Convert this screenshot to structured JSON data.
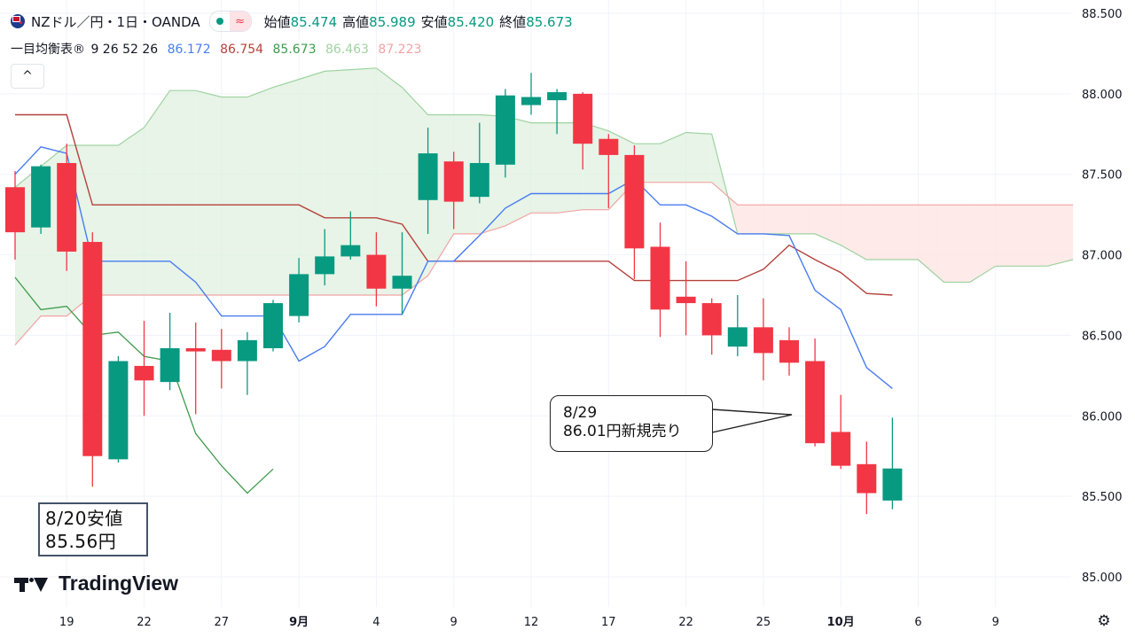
{
  "header": {
    "symbol": "NZドル／円・1日・OANDA",
    "open_label": "始値",
    "open": "85.474",
    "high_label": "高値",
    "high": "85.989",
    "low_label": "安値",
    "low": "85.420",
    "close_label": "終値",
    "close": "85.673",
    "market_icon": "market-status-icon",
    "wave_symbol": "≈"
  },
  "indicator": {
    "name": "一目均衡表®",
    "params": "9 26 52 26",
    "values": [
      {
        "value": "86.172",
        "color": "#4a7cf0"
      },
      {
        "value": "86.754",
        "color": "#b5413b"
      },
      {
        "value": "85.673",
        "color": "#3f9b4c"
      },
      {
        "value": "86.463",
        "color": "#9fd3a0"
      },
      {
        "value": "87.223",
        "color": "#f2a3a3"
      }
    ],
    "collapse_glyph": "^"
  },
  "callouts": {
    "entry_line1": "8/29",
    "entry_line2": "86.01円新規売り",
    "low_line1": "8/20安値",
    "low_line2": "85.56円"
  },
  "branding": {
    "logo_text": "TradingView"
  },
  "settings_glyph": "⚙",
  "colors": {
    "up": "#089981",
    "down": "#f23645",
    "tenkan": "#4a7cf0",
    "kijun": "#b5413b",
    "chikou": "#3f9b4c",
    "span_a": "#9fd3a0",
    "span_b": "#f2a3a3"
  },
  "chart_data": {
    "type": "candlestick",
    "ylim": [
      84.9,
      88.55
    ],
    "yticks": [
      88.5,
      88.0,
      87.5,
      87.0,
      86.5,
      86.0,
      85.5,
      85.0
    ],
    "ytick_labels": [
      "88.500",
      "88.000",
      "87.500",
      "87.000",
      "86.500",
      "86.000",
      "85.500",
      "85.000"
    ],
    "xtick_labels": [
      {
        "i": 2,
        "label": "19"
      },
      {
        "i": 5,
        "label": "22"
      },
      {
        "i": 8,
        "label": "27"
      },
      {
        "i": 11,
        "label": "9月",
        "bold": true
      },
      {
        "i": 14,
        "label": "4"
      },
      {
        "i": 17,
        "label": "9"
      },
      {
        "i": 20,
        "label": "12"
      },
      {
        "i": 23,
        "label": "17"
      },
      {
        "i": 26,
        "label": "22"
      },
      {
        "i": 29,
        "label": "25"
      },
      {
        "i": 32,
        "label": "10月",
        "bold": true
      },
      {
        "i": 35,
        "label": "6"
      },
      {
        "i": 38,
        "label": "9"
      }
    ],
    "candles": [
      {
        "i": 0,
        "o": 87.42,
        "h": 87.52,
        "l": 86.97,
        "c": 87.14
      },
      {
        "i": 1,
        "o": 87.17,
        "h": 87.56,
        "l": 87.13,
        "c": 87.55
      },
      {
        "i": 2,
        "o": 87.57,
        "h": 87.69,
        "l": 86.9,
        "c": 87.02
      },
      {
        "i": 3,
        "o": 87.08,
        "h": 87.14,
        "l": 85.56,
        "c": 85.75
      },
      {
        "i": 4,
        "o": 85.73,
        "h": 86.37,
        "l": 85.71,
        "c": 86.34
      },
      {
        "i": 5,
        "o": 86.31,
        "h": 86.59,
        "l": 86.0,
        "c": 86.22
      },
      {
        "i": 6,
        "o": 86.21,
        "h": 86.64,
        "l": 86.16,
        "c": 86.42
      },
      {
        "i": 7,
        "o": 86.42,
        "h": 86.58,
        "l": 86.01,
        "c": 86.4
      },
      {
        "i": 8,
        "o": 86.41,
        "h": 86.54,
        "l": 86.17,
        "c": 86.34
      },
      {
        "i": 9,
        "o": 86.34,
        "h": 86.52,
        "l": 86.13,
        "c": 86.47
      },
      {
        "i": 10,
        "o": 86.42,
        "h": 86.72,
        "l": 86.4,
        "c": 86.7
      },
      {
        "i": 11,
        "o": 86.62,
        "h": 86.98,
        "l": 86.58,
        "c": 86.88
      },
      {
        "i": 12,
        "o": 86.88,
        "h": 87.16,
        "l": 86.81,
        "c": 86.99
      },
      {
        "i": 13,
        "o": 86.99,
        "h": 87.27,
        "l": 86.97,
        "c": 87.06
      },
      {
        "i": 14,
        "o": 87.0,
        "h": 87.14,
        "l": 86.68,
        "c": 86.79
      },
      {
        "i": 15,
        "o": 86.79,
        "h": 87.14,
        "l": 86.63,
        "c": 86.87
      },
      {
        "i": 16,
        "o": 87.34,
        "h": 87.79,
        "l": 87.13,
        "c": 87.63
      },
      {
        "i": 17,
        "o": 87.58,
        "h": 87.64,
        "l": 87.16,
        "c": 87.33
      },
      {
        "i": 18,
        "o": 87.36,
        "h": 87.82,
        "l": 87.32,
        "c": 87.57
      },
      {
        "i": 19,
        "o": 87.56,
        "h": 88.03,
        "l": 87.48,
        "c": 87.99
      },
      {
        "i": 20,
        "o": 87.93,
        "h": 88.13,
        "l": 87.87,
        "c": 87.98
      },
      {
        "i": 21,
        "o": 87.96,
        "h": 88.03,
        "l": 87.75,
        "c": 88.01
      },
      {
        "i": 22,
        "o": 88.0,
        "h": 88.01,
        "l": 87.53,
        "c": 87.69
      },
      {
        "i": 23,
        "o": 87.72,
        "h": 87.75,
        "l": 87.29,
        "c": 87.62
      },
      {
        "i": 24,
        "o": 87.62,
        "h": 87.68,
        "l": 86.85,
        "c": 87.04
      },
      {
        "i": 25,
        "o": 87.05,
        "h": 87.2,
        "l": 86.49,
        "c": 86.66
      },
      {
        "i": 26,
        "o": 86.74,
        "h": 86.96,
        "l": 86.5,
        "c": 86.7
      },
      {
        "i": 27,
        "o": 86.7,
        "h": 86.73,
        "l": 86.38,
        "c": 86.5
      },
      {
        "i": 28,
        "o": 86.43,
        "h": 86.75,
        "l": 86.37,
        "c": 86.55
      },
      {
        "i": 29,
        "o": 86.55,
        "h": 86.73,
        "l": 86.22,
        "c": 86.39
      },
      {
        "i": 30,
        "o": 86.47,
        "h": 86.55,
        "l": 86.25,
        "c": 86.33
      },
      {
        "i": 31,
        "o": 86.34,
        "h": 86.48,
        "l": 85.81,
        "c": 85.83
      },
      {
        "i": 32,
        "o": 85.9,
        "h": 86.13,
        "l": 85.67,
        "c": 85.69
      },
      {
        "i": 33,
        "o": 85.7,
        "h": 85.84,
        "l": 85.39,
        "c": 85.52
      },
      {
        "i": 34,
        "o": 85.474,
        "h": 85.989,
        "l": 85.42,
        "c": 85.673
      }
    ],
    "tenkan": [
      [
        0,
        87.5
      ],
      [
        1,
        87.67
      ],
      [
        2,
        87.63
      ],
      [
        3,
        86.96
      ],
      [
        4,
        86.96
      ],
      [
        5,
        86.96
      ],
      [
        6,
        86.96
      ],
      [
        7,
        86.83
      ],
      [
        8,
        86.62
      ],
      [
        9,
        86.62
      ],
      [
        10,
        86.62
      ],
      [
        11,
        86.34
      ],
      [
        12,
        86.43
      ],
      [
        13,
        86.63
      ],
      [
        14,
        86.63
      ],
      [
        15,
        86.63
      ],
      [
        16,
        86.96
      ],
      [
        17,
        86.96
      ],
      [
        18,
        87.12
      ],
      [
        19,
        87.29
      ],
      [
        20,
        87.38
      ],
      [
        21,
        87.38
      ],
      [
        22,
        87.38
      ],
      [
        23,
        87.38
      ],
      [
        24,
        87.47
      ],
      [
        25,
        87.31
      ],
      [
        26,
        87.31
      ],
      [
        27,
        87.24
      ],
      [
        28,
        87.13
      ],
      [
        29,
        87.13
      ],
      [
        30,
        87.12
      ],
      [
        31,
        86.78
      ],
      [
        32,
        86.66
      ],
      [
        33,
        86.3
      ],
      [
        34,
        86.17
      ]
    ],
    "kijun": [
      [
        0,
        87.87
      ],
      [
        1,
        87.87
      ],
      [
        2,
        87.87
      ],
      [
        3,
        87.31
      ],
      [
        4,
        87.31
      ],
      [
        5,
        87.31
      ],
      [
        6,
        87.31
      ],
      [
        7,
        87.31
      ],
      [
        8,
        87.31
      ],
      [
        9,
        87.31
      ],
      [
        10,
        87.31
      ],
      [
        11,
        87.31
      ],
      [
        12,
        87.23
      ],
      [
        13,
        87.23
      ],
      [
        14,
        87.23
      ],
      [
        15,
        87.19
      ],
      [
        16,
        86.96
      ],
      [
        17,
        86.96
      ],
      [
        18,
        86.96
      ],
      [
        19,
        86.96
      ],
      [
        20,
        86.96
      ],
      [
        21,
        86.96
      ],
      [
        22,
        86.96
      ],
      [
        23,
        86.96
      ],
      [
        24,
        86.84
      ],
      [
        25,
        86.84
      ],
      [
        26,
        86.84
      ],
      [
        27,
        86.84
      ],
      [
        28,
        86.84
      ],
      [
        29,
        86.91
      ],
      [
        30,
        87.06
      ],
      [
        31,
        86.97
      ],
      [
        32,
        86.89
      ],
      [
        33,
        86.76
      ],
      [
        34,
        86.75
      ]
    ],
    "chikou": [
      [
        0,
        86.86
      ],
      [
        1,
        86.66
      ],
      [
        2,
        86.68
      ],
      [
        3,
        86.5
      ],
      [
        4,
        86.52
      ],
      [
        5,
        86.37
      ],
      [
        6,
        86.34
      ],
      [
        7,
        85.89
      ],
      [
        8,
        85.69
      ],
      [
        9,
        85.52
      ],
      [
        10,
        85.67
      ]
    ],
    "senkou_a": [
      [
        0,
        87.42
      ],
      [
        1,
        87.55
      ],
      [
        2,
        87.68
      ],
      [
        3,
        87.68
      ],
      [
        4,
        87.68
      ],
      [
        5,
        87.79
      ],
      [
        6,
        88.02
      ],
      [
        7,
        88.02
      ],
      [
        8,
        87.98
      ],
      [
        9,
        87.98
      ],
      [
        10,
        88.04
      ],
      [
        11,
        88.09
      ],
      [
        12,
        88.14
      ],
      [
        13,
        88.15
      ],
      [
        14,
        88.16
      ],
      [
        15,
        88.04
      ],
      [
        16,
        87.87
      ],
      [
        17,
        87.87
      ],
      [
        18,
        87.87
      ],
      [
        19,
        87.86
      ],
      [
        20,
        87.82
      ],
      [
        21,
        87.82
      ],
      [
        22,
        87.82
      ],
      [
        23,
        87.77
      ],
      [
        24,
        87.69
      ],
      [
        25,
        87.69
      ],
      [
        26,
        87.76
      ],
      [
        27,
        87.75
      ],
      [
        28,
        87.13
      ],
      [
        29,
        87.13
      ],
      [
        30,
        87.13
      ],
      [
        31,
        87.13
      ],
      [
        32,
        87.06
      ],
      [
        33,
        86.97
      ],
      [
        34,
        86.97
      ],
      [
        35,
        86.97
      ],
      [
        36,
        86.83
      ],
      [
        37,
        86.83
      ],
      [
        38,
        86.93
      ],
      [
        39,
        86.93
      ],
      [
        40,
        86.93
      ],
      [
        41,
        86.97
      ]
    ],
    "senkou_b": [
      [
        0,
        86.44
      ],
      [
        1,
        86.62
      ],
      [
        2,
        86.62
      ],
      [
        3,
        86.75
      ],
      [
        4,
        86.75
      ],
      [
        5,
        86.75
      ],
      [
        6,
        86.75
      ],
      [
        7,
        86.75
      ],
      [
        8,
        86.75
      ],
      [
        9,
        86.75
      ],
      [
        10,
        86.75
      ],
      [
        11,
        86.75
      ],
      [
        12,
        86.75
      ],
      [
        13,
        86.75
      ],
      [
        14,
        86.75
      ],
      [
        15,
        86.75
      ],
      [
        16,
        86.87
      ],
      [
        17,
        87.13
      ],
      [
        18,
        87.13
      ],
      [
        19,
        87.18
      ],
      [
        20,
        87.26
      ],
      [
        21,
        87.26
      ],
      [
        22,
        87.28
      ],
      [
        23,
        87.28
      ],
      [
        24,
        87.45
      ],
      [
        25,
        87.45
      ],
      [
        26,
        87.45
      ],
      [
        27,
        87.45
      ],
      [
        28,
        87.31
      ],
      [
        29,
        87.31
      ],
      [
        30,
        87.31
      ],
      [
        31,
        87.31
      ],
      [
        32,
        87.31
      ],
      [
        33,
        87.31
      ],
      [
        34,
        87.31
      ],
      [
        35,
        87.31
      ],
      [
        36,
        87.31
      ],
      [
        37,
        87.31
      ],
      [
        38,
        87.31
      ],
      [
        39,
        87.31
      ],
      [
        40,
        87.31
      ],
      [
        41,
        87.31
      ]
    ]
  }
}
